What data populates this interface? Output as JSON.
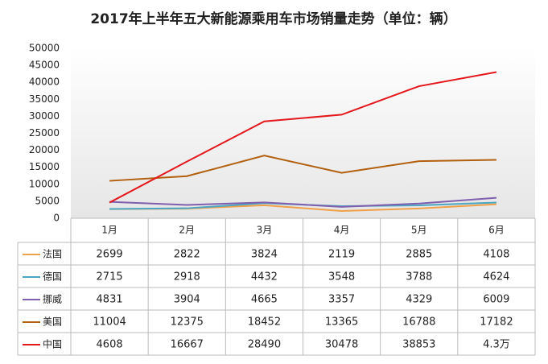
{
  "chart_data": {
    "type": "line",
    "title": "2017年上半年五大新能源乘用车市场销量走势（单位：辆）",
    "categories": [
      "1月",
      "2月",
      "3月",
      "4月",
      "5月",
      "6月"
    ],
    "ylim": [
      0,
      50000
    ],
    "yticks": [
      0,
      5000,
      10000,
      15000,
      20000,
      25000,
      30000,
      35000,
      40000,
      45000,
      50000
    ],
    "grid": false,
    "series": [
      {
        "name": "法国",
        "color": "#f0a048",
        "values": [
          2699,
          2822,
          3824,
          2119,
          2885,
          4108
        ]
      },
      {
        "name": "德国",
        "color": "#4aa6c2",
        "values": [
          2715,
          2918,
          4432,
          3548,
          3788,
          4624
        ]
      },
      {
        "name": "挪威",
        "color": "#7f5fae",
        "values": [
          4831,
          3904,
          4665,
          3357,
          4329,
          6009
        ]
      },
      {
        "name": "美国",
        "color": "#b2600e",
        "values": [
          11004,
          12375,
          18452,
          13365,
          16788,
          17182
        ]
      },
      {
        "name": "中国",
        "color": "#e4181c",
        "values": [
          4608,
          16667,
          28490,
          30478,
          38853,
          43000
        ],
        "value_labels": [
          "4608",
          "16667",
          "28490",
          "30478",
          "38853",
          "4.3万"
        ]
      }
    ]
  }
}
